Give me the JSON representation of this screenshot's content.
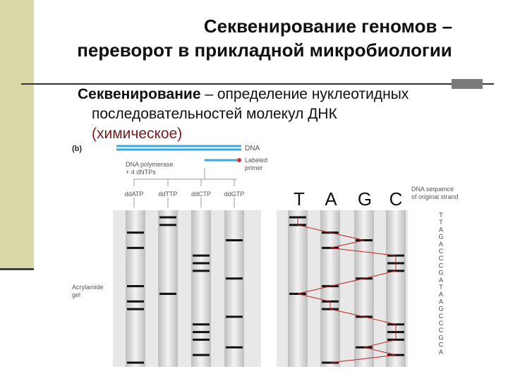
{
  "slide": {
    "title_line1": "Секвенирование геномов –",
    "title_line2": "переворот в прикладной микробиологии",
    "subtitle_head": "Секвенирование",
    "subtitle_rest": " – определение нуклеотидных",
    "subtitle_line2": "последовательностей молекул ДНК",
    "subtitle_line3": "(химическое)"
  },
  "figure": {
    "panel_label": "(b)",
    "dna_label": "DNA",
    "primer_label_1": "Labeled",
    "primer_label_2": "primer",
    "polymerase_1": "DNA polymerase",
    "polymerase_2": "+ 4 dNTPs",
    "tubes": [
      "ddATP",
      "ddTTP",
      "ddCTP",
      "ddGTP"
    ],
    "gel_label_1": "Acrylamide",
    "gel_label_2": "gel",
    "lane_letters": [
      "T",
      "A",
      "G",
      "C"
    ],
    "seq_label_1": "DNA sequence",
    "seq_label_2": "of original strand",
    "sequence": [
      "T",
      "T",
      "A",
      "G",
      "A",
      "C",
      "C",
      "C",
      "G",
      "A",
      "T",
      "A",
      "A",
      "G",
      "C",
      "C",
      "C",
      "G",
      "C",
      "A"
    ],
    "colors": {
      "dna_strand": "#3aa8e0",
      "primer_dot": "#d03030",
      "trace": "#c02020"
    }
  }
}
